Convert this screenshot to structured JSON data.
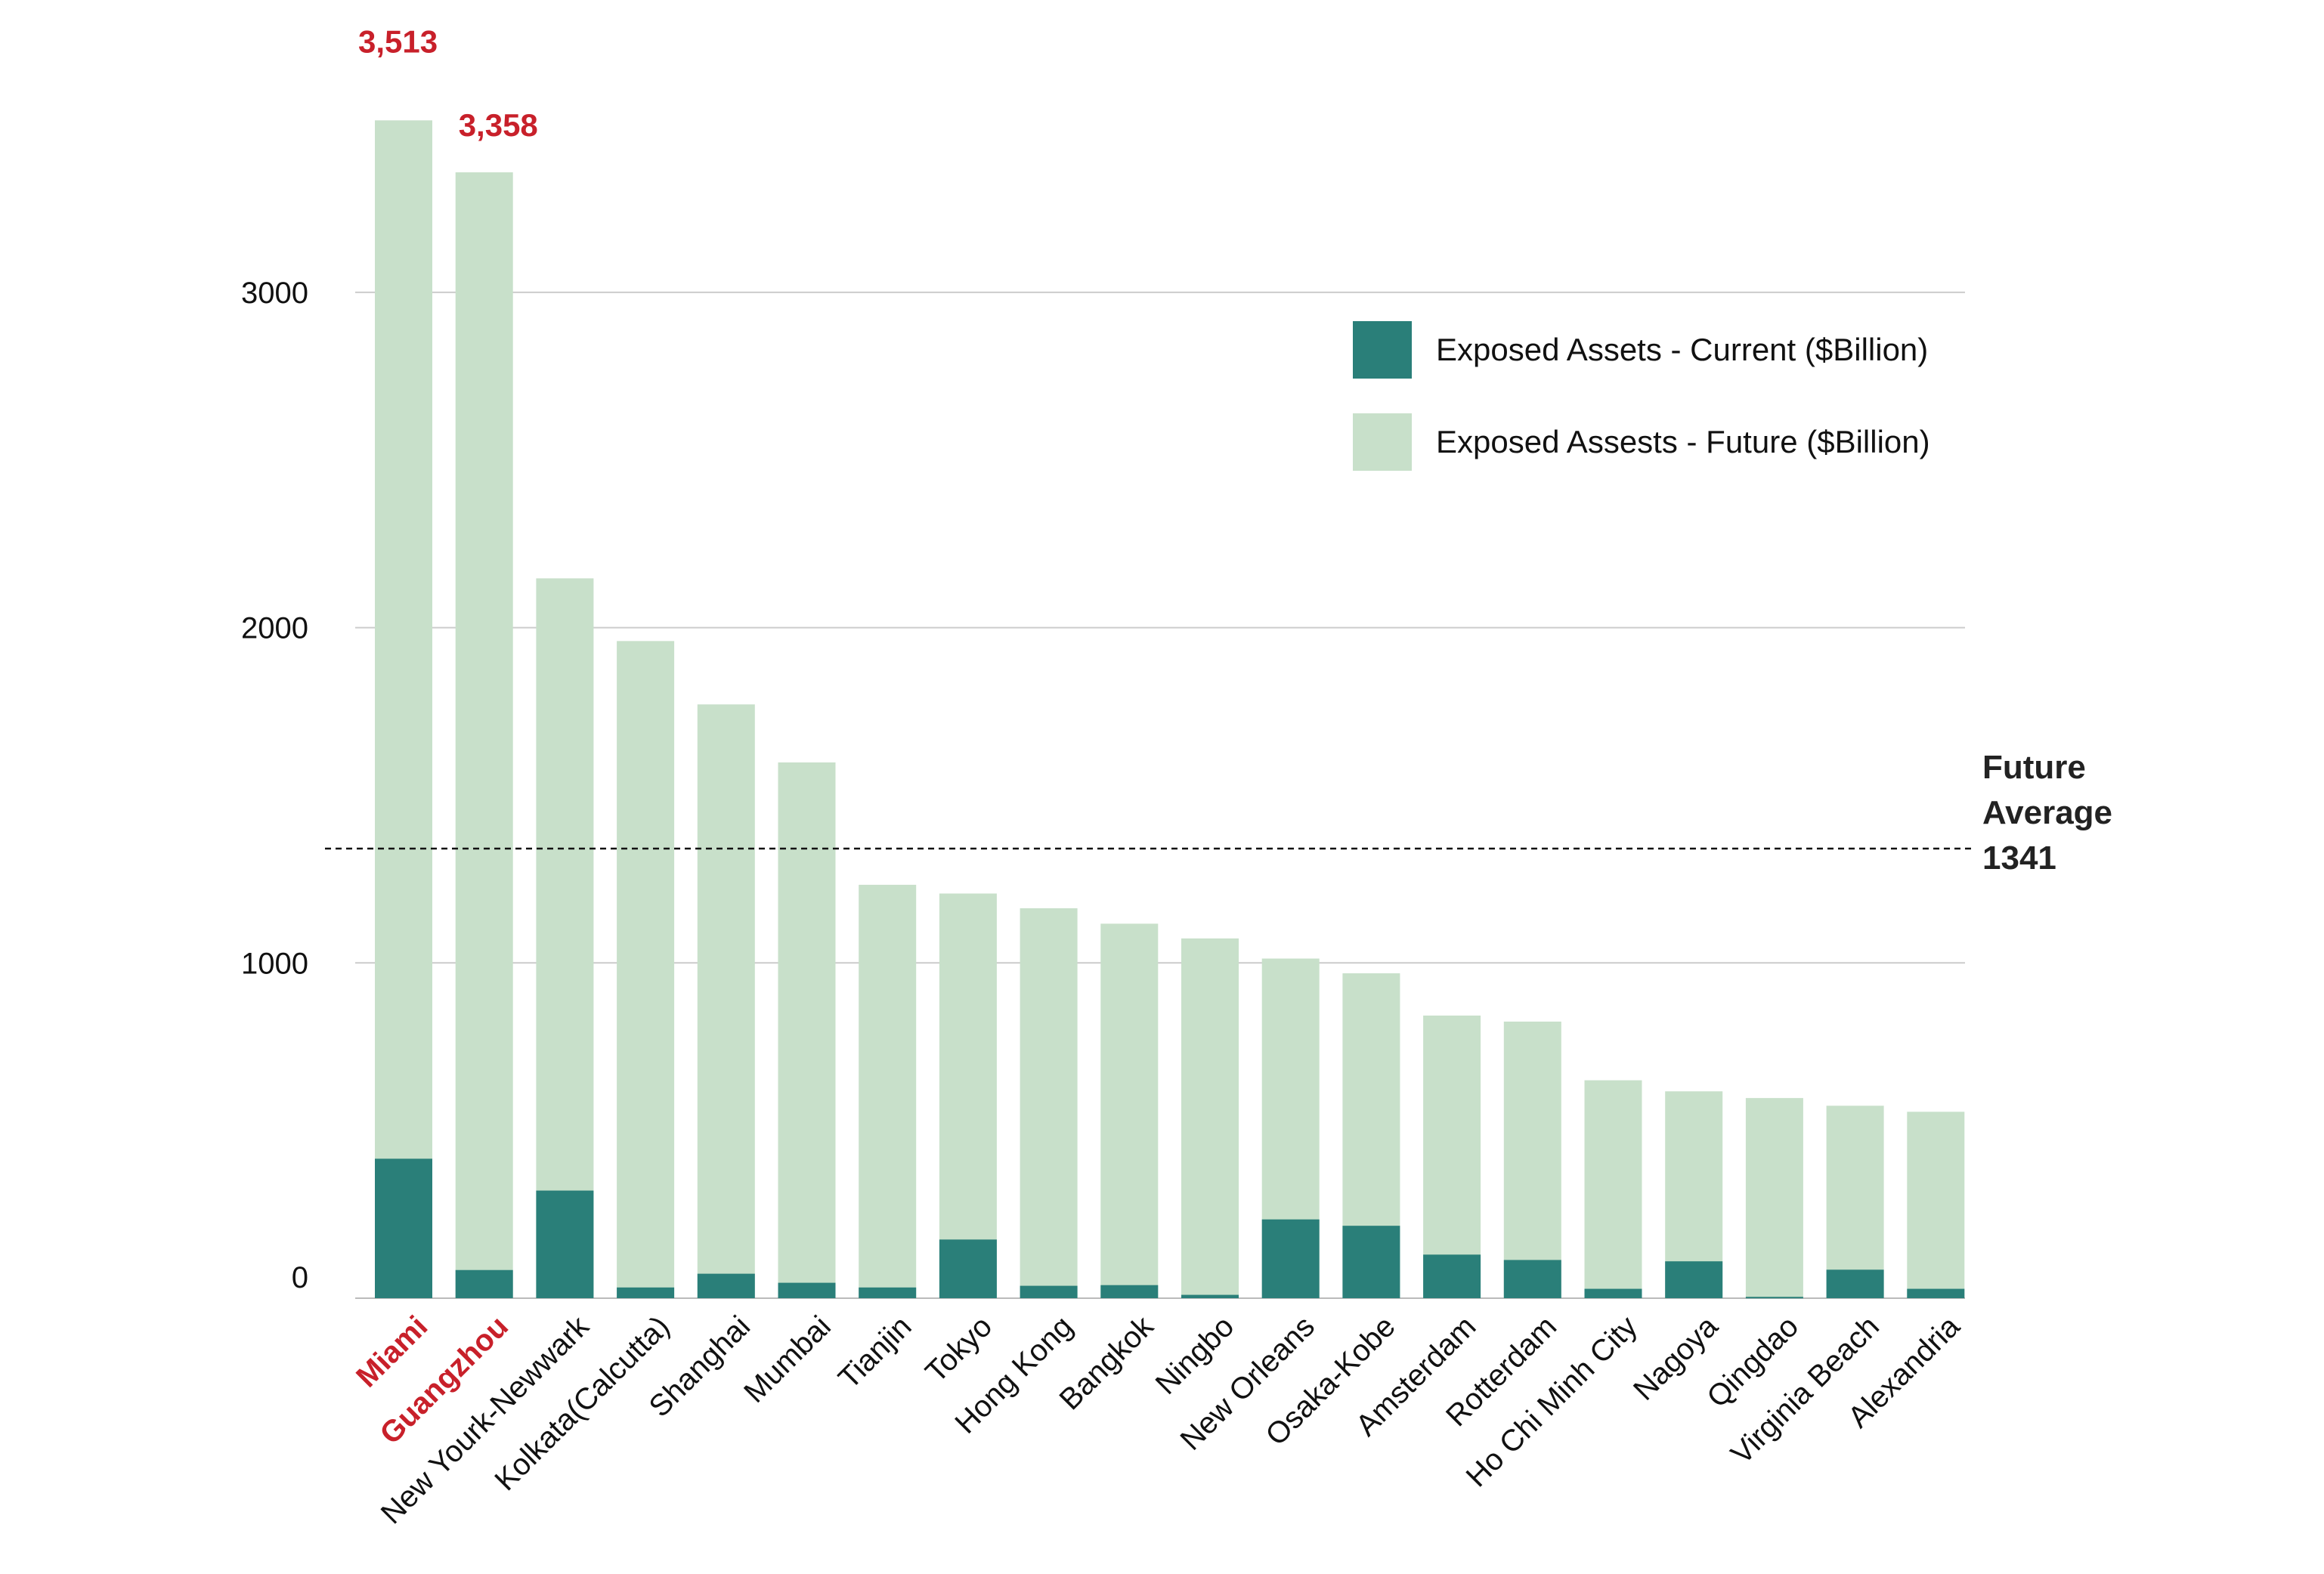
{
  "chart_data": {
    "type": "bar",
    "stacking": "overlay",
    "categories": [
      "Miami",
      "Guangzhou",
      "New Yourk-Newwark",
      "Kolkata(Calcutta)",
      "Shanghai",
      "Mumbai",
      "Tianjin",
      "Tokyo",
      "Hong Kong",
      "Bangkok",
      "Ningbo",
      "New Orleans",
      "Osaka-Kobe",
      "Amsterdam",
      "Rotterdam",
      "Ho Chi Minh City",
      "Nagoya",
      "Qingdao",
      "Virginia Beach",
      "Alexandria"
    ],
    "highlighted_categories": [
      "Miami",
      "Guangzhou"
    ],
    "series": [
      {
        "name": "Exposed Assests - Future ($Billion)",
        "color": "#c8e0ca",
        "values": [
          3513,
          3358,
          2147,
          1960,
          1771,
          1598,
          1233,
          1207,
          1163,
          1117,
          1073,
          1013,
          969,
          843,
          825,
          650,
          617,
          597,
          574,
          556
        ]
      },
      {
        "name": "Exposed Assets - Current ($Billion)",
        "color": "#2a7f79",
        "values": [
          416,
          84,
          321,
          32,
          73,
          46,
          32,
          175,
          37,
          39,
          10,
          235,
          216,
          130,
          114,
          28,
          110,
          4,
          85,
          28
        ]
      }
    ],
    "legend": {
      "position": "top-right",
      "items": [
        {
          "label": "Exposed Assets - Current ($Billion)",
          "color": "#2a7f79"
        },
        {
          "label": "Exposed Assests - Future ($Billion)",
          "color": "#c8e0ca"
        }
      ]
    },
    "data_labels": [
      {
        "category": "Miami",
        "text": "3,513"
      },
      {
        "category": "Guangzhou",
        "text": "3,358"
      }
    ],
    "reference_line": {
      "value": 1341,
      "style": "dashed",
      "label_lines": [
        "Future",
        "Average",
        "1341"
      ]
    },
    "y_ticks": [
      {
        "value": 0,
        "label": "0"
      },
      {
        "value": 1000,
        "label": "1000"
      },
      {
        "value": 2000,
        "label": "2000"
      },
      {
        "value": 3000,
        "label": "3000"
      }
    ],
    "ylim": [
      0,
      3600
    ],
    "grid": true,
    "title": "",
    "xlabel": "",
    "ylabel": ""
  }
}
